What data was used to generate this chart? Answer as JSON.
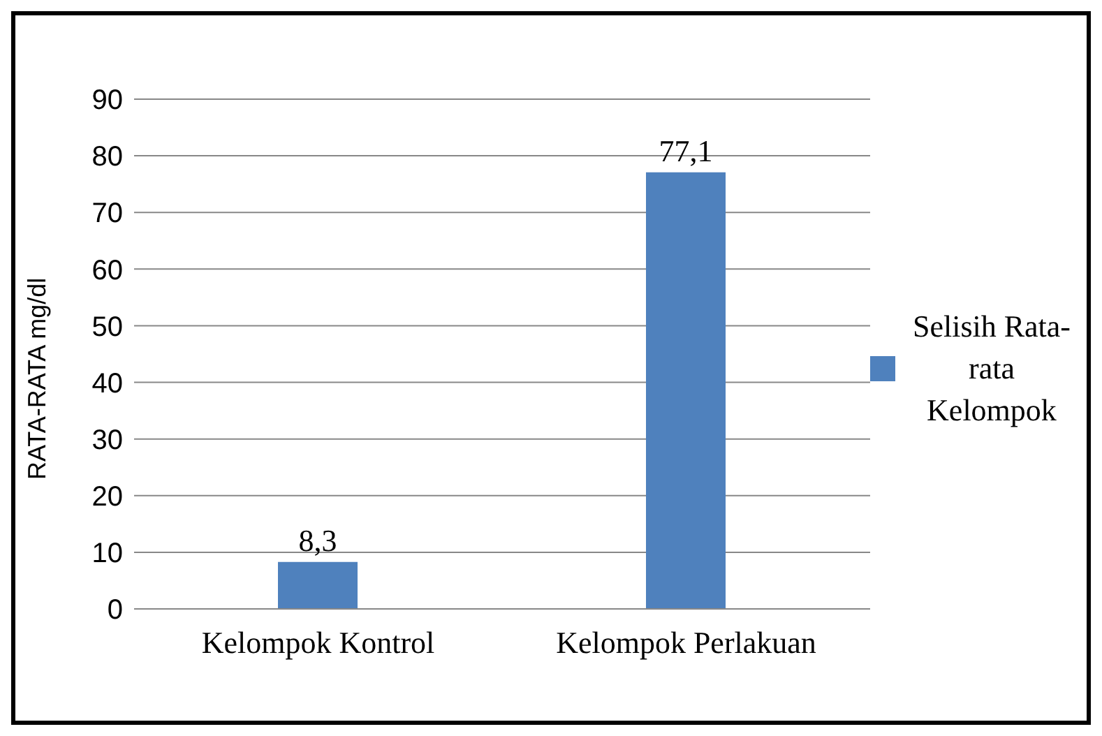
{
  "chart_data": {
    "type": "bar",
    "ylabel": "RATA-RATA mg/dl",
    "categories": [
      "Kelompok Kontrol",
      "Kelompok Perlakuan"
    ],
    "series": [
      {
        "name": "Selisih Rata-rata Kelompok",
        "color": "#4f81bd",
        "values": [
          8.3,
          77.1
        ],
        "value_labels": [
          "8,3",
          "77,1"
        ]
      }
    ],
    "ylim": [
      0,
      90
    ],
    "yticks": [
      0,
      10,
      20,
      30,
      40,
      50,
      60,
      70,
      80,
      90
    ],
    "grid": "y",
    "legend": "right"
  }
}
